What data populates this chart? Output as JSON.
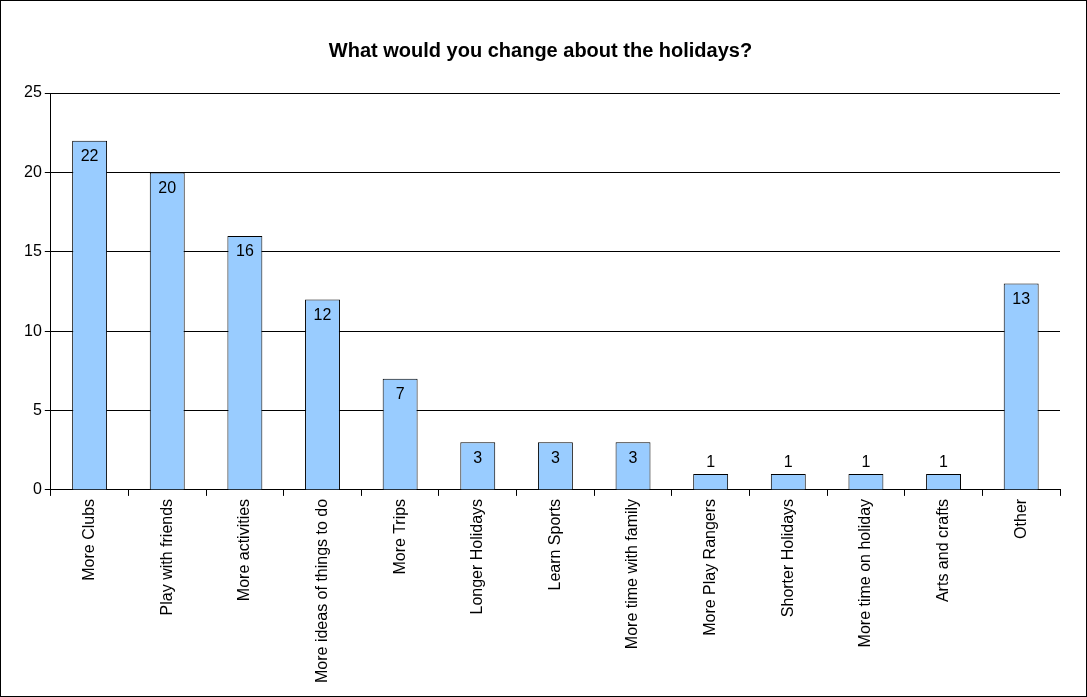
{
  "chart_data": {
    "type": "bar",
    "title": "What would you change about the holidays?",
    "categories": [
      "More Clubs",
      "Play with friends",
      "More activities",
      "More ideas of things to do",
      "More Trips",
      "Longer Holidays",
      "Learn Sports",
      "More time with family",
      "More Play Rangers",
      "Shorter Holidays",
      "More time on holiday",
      "Arts and crafts",
      "Other"
    ],
    "values": [
      22,
      20,
      16,
      12,
      7,
      3,
      3,
      3,
      1,
      1,
      1,
      1,
      13
    ],
    "color": "#99ccff",
    "ylim": [
      0,
      25
    ],
    "yticks": [
      0,
      5,
      10,
      15,
      20,
      25
    ],
    "grid": "y",
    "legend": false,
    "data_labels": true
  }
}
